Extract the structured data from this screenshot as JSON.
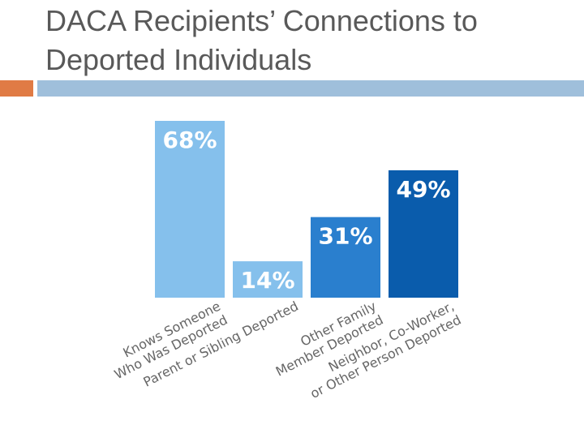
{
  "slide": {
    "title": "DACA Recipients’ Connections to\nDeported Individuals"
  },
  "colors": {
    "accent_orange": "#E07B45",
    "accent_blue": "#9FBFDB",
    "bars": [
      "#85C0EC",
      "#85C0EC",
      "#2A7FCE",
      "#0A5CAC"
    ]
  },
  "chart_data": {
    "type": "bar",
    "categories": [
      [
        "Knows Someone",
        "Who Was Deported"
      ],
      [
        "Parent or Sibling Deported"
      ],
      [
        "Other Family",
        "Member Deported"
      ],
      [
        "Neighbor, Co-Worker,",
        "or Other Person Deported"
      ]
    ],
    "values": [
      68,
      14,
      31,
      49
    ],
    "data_labels": [
      "68%",
      "14%",
      "31%",
      "49%"
    ],
    "unit": "%",
    "ylim": [
      0,
      68
    ],
    "grid": false,
    "legend": "none"
  }
}
